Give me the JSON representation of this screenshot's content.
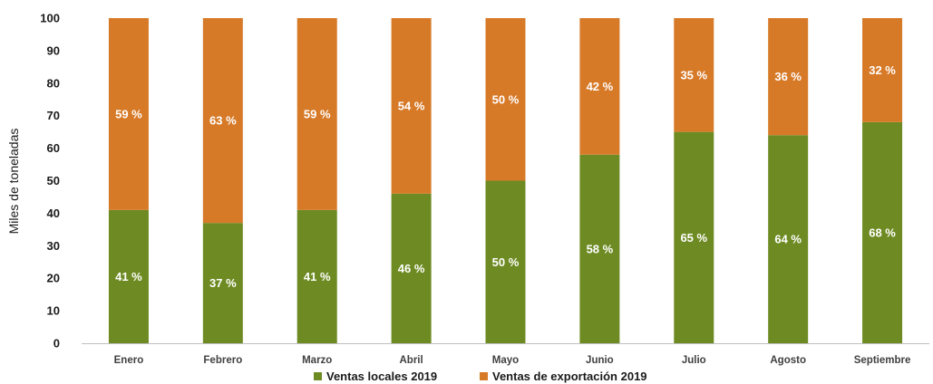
{
  "chart_data": {
    "type": "bar",
    "stacked": true,
    "categories": [
      "Enero",
      "Febrero",
      "Marzo",
      "Abril",
      "Mayo",
      "Junio",
      "Julio",
      "Agosto",
      "Septiembre"
    ],
    "series": [
      {
        "name": "Ventas locales 2019",
        "color": "#6e8b23",
        "values": [
          41,
          37,
          41,
          46,
          50,
          58,
          65,
          64,
          68
        ],
        "labels": [
          "41 %",
          "37 %",
          "41 %",
          "46 %",
          "50 %",
          "58 %",
          "65 %",
          "64 %",
          "68 %"
        ]
      },
      {
        "name": "Ventas de exportación 2019",
        "color": "#d77a28",
        "values": [
          59,
          63,
          59,
          54,
          50,
          42,
          35,
          36,
          32
        ],
        "labels": [
          "59 %",
          "63 %",
          "59 %",
          "54 %",
          "50 %",
          "42 %",
          "35 %",
          "36 %",
          "32 %"
        ]
      }
    ],
    "ylabel": "Miles de toneladas",
    "ylim": [
      0,
      100
    ],
    "yticks": [
      0,
      10,
      20,
      30,
      40,
      50,
      60,
      70,
      80,
      90,
      100
    ],
    "grid": false,
    "legend_position": "bottom"
  }
}
